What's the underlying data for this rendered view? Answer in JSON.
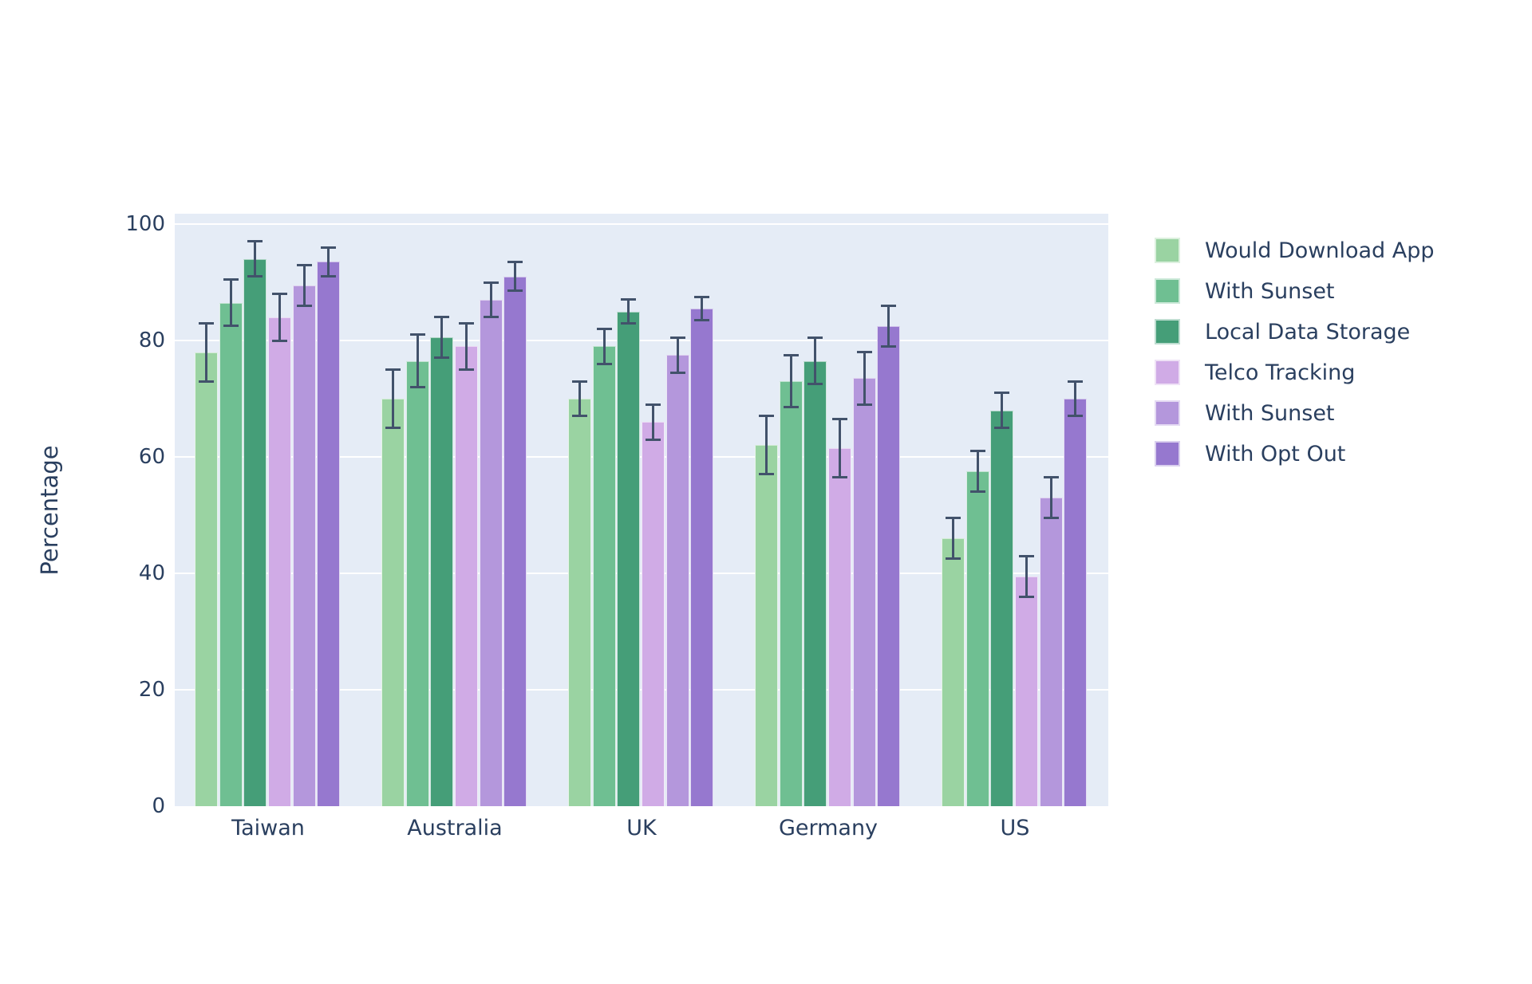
{
  "chart_data": {
    "type": "bar",
    "title": "",
    "xlabel": "",
    "ylabel": "Percentage",
    "categories": [
      "Taiwan",
      "Australia",
      "UK",
      "Germany",
      "US"
    ],
    "y_ticks": [
      0,
      20,
      40,
      60,
      80,
      100
    ],
    "ylim": [
      0,
      102
    ],
    "grid": true,
    "legend_position": "right",
    "error_bars": true,
    "series": [
      {
        "name": "Would Download App",
        "color": "#9ad3a2",
        "values": [
          78,
          70,
          70,
          62,
          46
        ],
        "errors": [
          5,
          5,
          3,
          5,
          3.5
        ]
      },
      {
        "name": "With Sunset",
        "color": "#6fbf92",
        "values": [
          86.5,
          76.5,
          79,
          73,
          57.5
        ],
        "errors": [
          4,
          4.5,
          3,
          4.5,
          3.5
        ]
      },
      {
        "name": "Local Data Storage",
        "color": "#459e78",
        "values": [
          94,
          80.5,
          85,
          76.5,
          68
        ],
        "errors": [
          3,
          3.5,
          2,
          4,
          3
        ]
      },
      {
        "name": "Telco Tracking",
        "color": "#d0abe6",
        "values": [
          84,
          79,
          66,
          61.5,
          39.5
        ],
        "errors": [
          4,
          4,
          3,
          5,
          3.5
        ]
      },
      {
        "name": "With Sunset",
        "color": "#b497dc",
        "values": [
          89.5,
          87,
          77.5,
          73.5,
          53
        ],
        "errors": [
          3.5,
          3,
          3,
          4.5,
          3.5
        ]
      },
      {
        "name": "With Opt Out",
        "color": "#9678cf",
        "values": [
          93.5,
          91,
          85.5,
          82.5,
          70
        ],
        "errors": [
          2.5,
          2.5,
          2,
          3.5,
          3
        ]
      }
    ],
    "colors": {
      "plot_background": "#e5ecf6",
      "gridline": "#ffffff",
      "axis_text": "#2a3f5f",
      "error_bar": "#42526b"
    }
  }
}
